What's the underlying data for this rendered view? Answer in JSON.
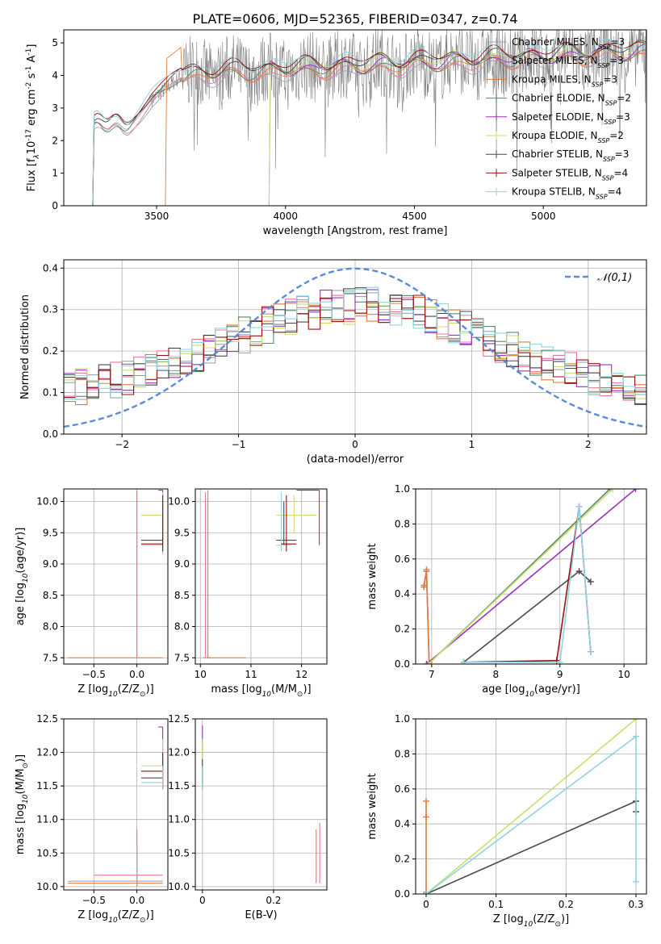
{
  "figure": {
    "title": "PLATE=0606, MJD=52365, FIBERID=0347, z=0.74"
  },
  "series_styles": [
    {
      "name": "Chabrier MILES, N$_{SSP}$=3",
      "label": "Chabrier MILES, N",
      "sub": "SSP",
      "tail": "=3",
      "color": "#9aa6b8"
    },
    {
      "name": "Salpeter MILES, N$_{SSP}$=3",
      "label": "Salpeter MILES, N",
      "sub": "SSP",
      "tail": "=3",
      "color": "#e8789a"
    },
    {
      "name": "Kroupa MILES, N$_{SSP}$=3",
      "label": "Kroupa MILES, N",
      "sub": "SSP",
      "tail": "=3",
      "color": "#e07b39"
    },
    {
      "name": "Chabrier ELODIE, N$_{SSP}$=2",
      "label": "Chabrier ELODIE, N",
      "sub": "SSP",
      "tail": "=2",
      "color": "#5a8a6a"
    },
    {
      "name": "Salpeter ELODIE, N$_{SSP}$=3",
      "label": "Salpeter ELODIE, N",
      "sub": "SSP",
      "tail": "=3",
      "color": "#9b30c0"
    },
    {
      "name": "Kroupa ELODIE, N$_{SSP}$=2",
      "label": "Kroupa ELODIE, N",
      "sub": "SSP",
      "tail": "=2",
      "color": "#c6e06a"
    },
    {
      "name": "Chabrier STELIB, N$_{SSP}$=3",
      "label": "Chabrier STELIB, N",
      "sub": "SSP",
      "tail": "=3",
      "color": "#4a4a4a"
    },
    {
      "name": "Salpeter STELIB, N$_{SSP}$=4",
      "label": "Salpeter STELIB, N",
      "sub": "SSP",
      "tail": "=4",
      "color": "#9a1010"
    },
    {
      "name": "Kroupa STELIB, N$_{SSP}$=4",
      "label": "Kroupa STELIB, N",
      "sub": "SSP",
      "tail": "=4",
      "color": "#8fd3e0"
    }
  ],
  "chart_data": [
    {
      "type": "line",
      "id": "spectrum",
      "xlabel": "wavelength [Angstrom, rest frame]",
      "ylabel": "Flux [f$_\\lambda$10$^{-17}$ erg cm$^{-2}$ s$^{-1}$ A$^{-1}$]",
      "xlim": [
        3140,
        5400
      ],
      "ylim": [
        0,
        5.4
      ],
      "xticks": [
        3500,
        4000,
        4500,
        5000
      ],
      "yticks": [
        0,
        1,
        2,
        3,
        4,
        5
      ],
      "grid": false,
      "legend": "right",
      "observed_spectrum": {
        "color": "#808080",
        "x_start": 3250,
        "x_end": 5400,
        "approx_level": 4.5
      },
      "model_spectra": {
        "x_start": 3250,
        "x_end": 5400,
        "approx_level": 4.1
      }
    },
    {
      "type": "line",
      "id": "residual-histogram",
      "xlabel": "(data-model)/error",
      "ylabel": "Normed distribution",
      "xlim": [
        -2.5,
        2.5
      ],
      "ylim": [
        0,
        0.42
      ],
      "xticks": [
        -2,
        -1,
        0,
        1,
        2
      ],
      "xtick_labels": [
        "−2",
        "−1",
        "0",
        "1",
        "2"
      ],
      "yticks": [
        0.0,
        0.1,
        0.2,
        0.3,
        0.4
      ],
      "grid": true,
      "legend": "top-right",
      "reference_curve": {
        "label": "$\\mathcal{N}(0,1)$",
        "color": "#5b8bd8",
        "style": "dashed",
        "mean": 0,
        "sigma": 1
      },
      "histogram_bins": {
        "xmin": -2.5,
        "xmax": 2.5,
        "bin_width": 0.1
      }
    },
    {
      "type": "scatter",
      "id": "age-vs-metallicity",
      "xlabel": "Z [log$_{10}$(Z/Z$_\\odot$)]",
      "ylabel": "age  [log$_{10}$(age/yr)]",
      "xlim": [
        -0.85,
        0.36
      ],
      "ylim": [
        7.4,
        10.2
      ],
      "xticks": [
        -0.5,
        0.0
      ],
      "xtick_labels": [
        "−0.5",
        "0.0"
      ],
      "yticks": [
        7.5,
        8.0,
        8.5,
        9.0,
        9.5,
        10.0
      ],
      "grid": true
    },
    {
      "type": "scatter",
      "id": "age-vs-mass",
      "xlabel": "mass [log$_{10}$(M/M$_\\odot$)]",
      "xlim": [
        9.9,
        12.5
      ],
      "ylim": [
        7.4,
        10.2
      ],
      "xticks": [
        10,
        11,
        12
      ],
      "yticks": [
        7.5,
        8.0,
        8.5,
        9.0,
        9.5,
        10.0
      ],
      "grid": true
    },
    {
      "type": "line",
      "id": "massweight-vs-age",
      "xlabel": "age  [log$_{10}$(age/yr)]",
      "ylabel": "mass weight",
      "xlim": [
        6.75,
        10.35
      ],
      "ylim": [
        0,
        1
      ],
      "xticks": [
        7,
        8,
        9,
        10
      ],
      "yticks": [
        0.0,
        0.2,
        0.4,
        0.6,
        0.8,
        1.0
      ],
      "grid": true,
      "series": [
        {
          "name": "Chabrier MILES, N$_{SSP}$=3",
          "x": [
            6.88,
            6.92,
            6.96
          ],
          "y": [
            0.44,
            0.53,
            0.01
          ]
        },
        {
          "name": "Salpeter MILES, N$_{SSP}$=3",
          "x": [
            6.88,
            6.92,
            6.96
          ],
          "y": [
            0.45,
            0.54,
            0.01
          ]
        },
        {
          "name": "Kroupa MILES, N$_{SSP}$=3",
          "x": [
            6.88,
            6.92,
            6.96
          ],
          "y": [
            0.44,
            0.53,
            0.01
          ]
        },
        {
          "name": "Chabrier ELODIE, N$_{SSP}$=2",
          "x": [
            6.95,
            9.78
          ],
          "y": [
            0.0,
            1.0
          ]
        },
        {
          "name": "Salpeter ELODIE, N$_{SSP}$=3",
          "x": [
            6.92,
            10.18
          ],
          "y": [
            0.0,
            1.0
          ]
        },
        {
          "name": "Kroupa ELODIE, N$_{SSP}$=2",
          "x": [
            6.95,
            9.82
          ],
          "y": [
            0.0,
            1.0
          ]
        },
        {
          "name": "Chabrier STELIB, N$_{SSP}$=3",
          "x": [
            7.5,
            9.3,
            9.48
          ],
          "y": [
            0.01,
            0.53,
            0.47
          ]
        },
        {
          "name": "Salpeter STELIB, N$_{SSP}$=4",
          "x": [
            7.5,
            8.95,
            9.3,
            9.48
          ],
          "y": [
            0.01,
            0.02,
            0.9,
            0.07
          ]
        },
        {
          "name": "Kroupa STELIB, N$_{SSP}$=4",
          "x": [
            7.5,
            9.0,
            9.3,
            9.48
          ],
          "y": [
            0.01,
            0.01,
            0.9,
            0.07
          ]
        }
      ]
    },
    {
      "type": "scatter",
      "id": "mass-vs-metallicity",
      "xlabel": "Z [log$_{10}$(Z/Z$_\\odot$)]",
      "ylabel": "mass [log$_{10}$(M/M$_\\odot$)]",
      "xlim": [
        -0.85,
        0.36
      ],
      "ylim": [
        9.95,
        12.5
      ],
      "xticks": [
        -0.5,
        0.0
      ],
      "xtick_labels": [
        "−0.5",
        "0.0"
      ],
      "yticks": [
        10.0,
        10.5,
        11.0,
        11.5,
        12.0,
        12.5
      ],
      "grid": true
    },
    {
      "type": "scatter",
      "id": "mass-vs-ebv",
      "xlabel": "E(B-V)",
      "xlim": [
        -0.02,
        0.35
      ],
      "ylim": [
        9.95,
        12.5
      ],
      "xticks": [
        0.0,
        0.2
      ],
      "yticks": [
        10.0,
        10.5,
        11.0,
        11.5,
        12.0,
        12.5
      ],
      "grid": true
    },
    {
      "type": "line",
      "id": "massweight-vs-metallicity",
      "xlabel": "Z [log$_{10}$(Z/Z$_\\odot$)]",
      "ylabel": "mass weight",
      "xlim": [
        -0.015,
        0.315
      ],
      "ylim": [
        0,
        1
      ],
      "xticks": [
        0.0,
        0.1,
        0.2,
        0.3
      ],
      "yticks": [
        0.0,
        0.2,
        0.4,
        0.6,
        0.8,
        1.0
      ],
      "grid": true,
      "series": [
        {
          "name": "Kroupa MILES, N$_{SSP}$=3",
          "x": [
            0.0,
            0.0,
            0.0
          ],
          "y": [
            0.53,
            0.44,
            0.01
          ]
        },
        {
          "name": "Kroupa ELODIE, N$_{SSP}$=2",
          "x": [
            0.0,
            0.3
          ],
          "y": [
            0.0,
            1.0
          ]
        },
        {
          "name": "Chabrier STELIB, N$_{SSP}$=3",
          "x": [
            0.0,
            0.3,
            0.3
          ],
          "y": [
            0.0,
            0.53,
            0.47
          ]
        },
        {
          "name": "Kroupa STELIB, N$_{SSP}$=4",
          "x": [
            0.0,
            0.3,
            0.3
          ],
          "y": [
            0.0,
            0.9,
            0.07
          ]
        }
      ]
    }
  ]
}
